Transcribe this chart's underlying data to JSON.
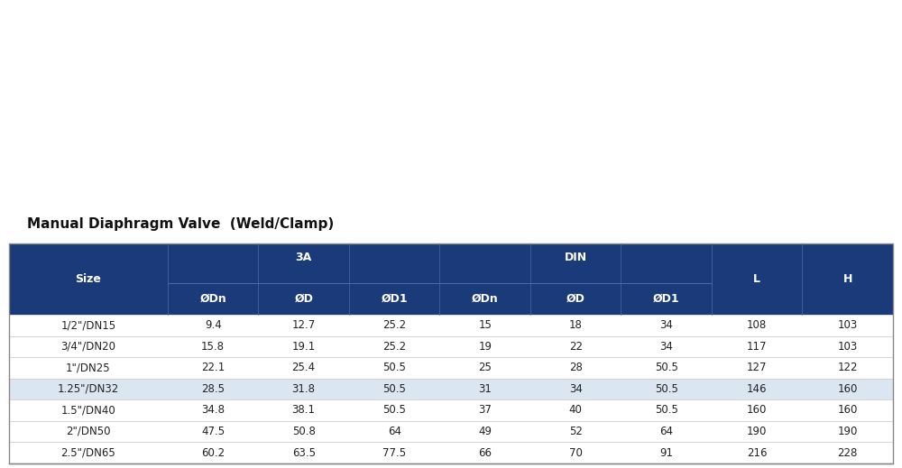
{
  "title": "Manual Diaphragm Valve  (Weld/Clamp)",
  "header_bg": "#1a3a7a",
  "header_fg": "#ffffff",
  "row_alt_bg": "#dce6f1",
  "row_normal_bg": "#ffffff",
  "col_widths": [
    1.4,
    0.8,
    0.8,
    0.8,
    0.8,
    0.8,
    0.8,
    0.8,
    0.8
  ],
  "rows": [
    [
      "1/2\"/DN15",
      "9.4",
      "12.7",
      "25.2",
      "15",
      "18",
      "34",
      "108",
      "103"
    ],
    [
      "3/4\"/DN20",
      "15.8",
      "19.1",
      "25.2",
      "19",
      "22",
      "34",
      "117",
      "103"
    ],
    [
      "1\"/DN25",
      "22.1",
      "25.4",
      "50.5",
      "25",
      "28",
      "50.5",
      "127",
      "122"
    ],
    [
      "1.25\"/DN32",
      "28.5",
      "31.8",
      "50.5",
      "31",
      "34",
      "50.5",
      "146",
      "160"
    ],
    [
      "1.5\"/DN40",
      "34.8",
      "38.1",
      "50.5",
      "37",
      "40",
      "50.5",
      "160",
      "160"
    ],
    [
      "2\"/DN50",
      "47.5",
      "50.8",
      "64",
      "49",
      "52",
      "64",
      "190",
      "190"
    ],
    [
      "2.5\"/DN65",
      "60.2",
      "63.5",
      "77.5",
      "66",
      "70",
      "91",
      "216",
      "228"
    ]
  ],
  "alt_rows": [
    3
  ],
  "sub_labels": [
    "ØDn",
    "ØD",
    "ØD1",
    "ØDn",
    "ØD",
    "ØD1"
  ]
}
